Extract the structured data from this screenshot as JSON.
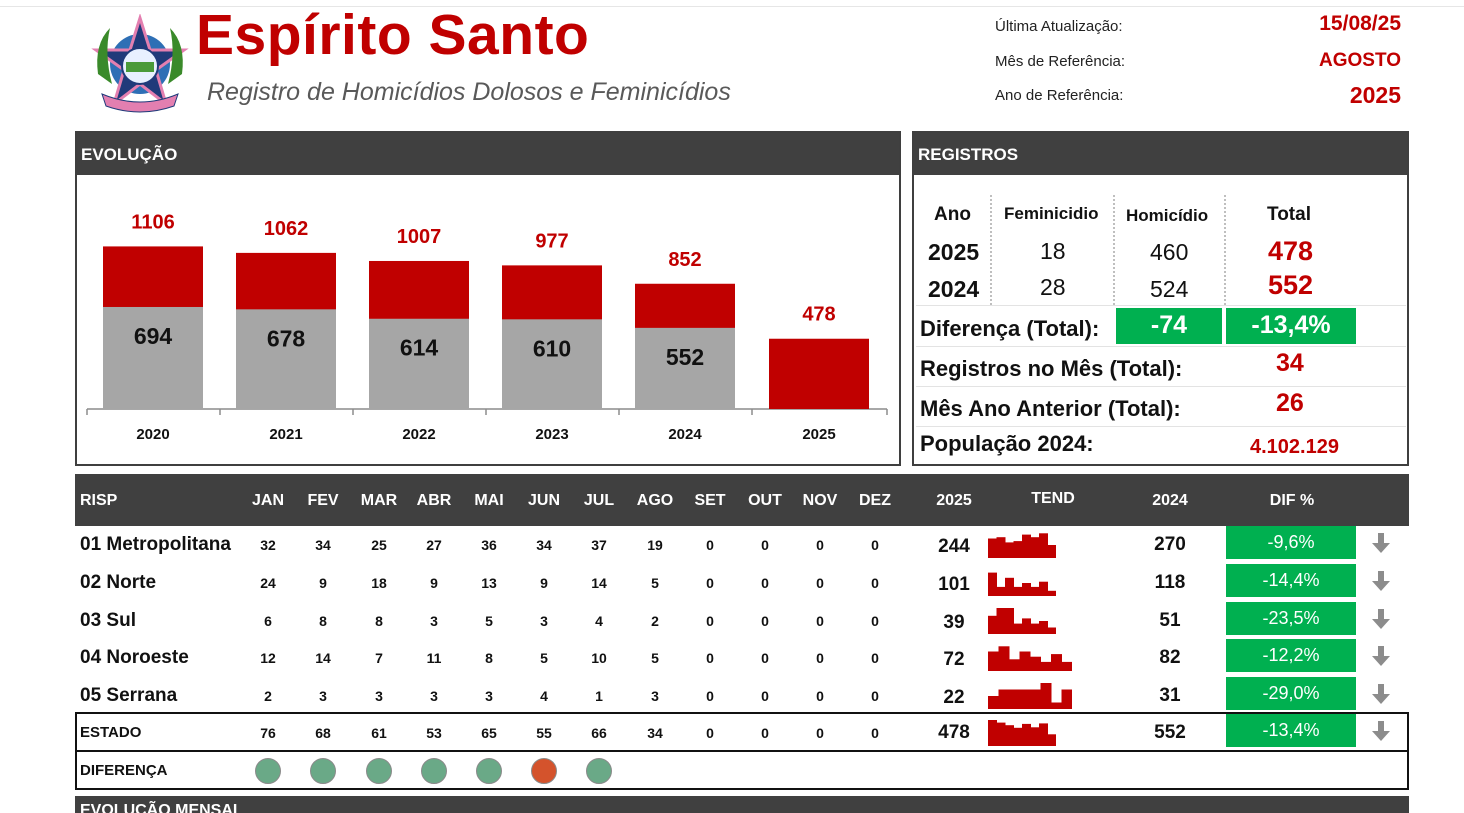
{
  "header": {
    "title": "Espírito Santo",
    "subtitle": "Registro de Homicídios Dolosos e Feminicídios",
    "meta": [
      {
        "label": "Última Atualização:",
        "value": "15/08/25"
      },
      {
        "label": "Mês de Referência:",
        "value": "AGOSTO"
      },
      {
        "label": "Ano de Referência:",
        "value": "2025"
      }
    ]
  },
  "colors": {
    "accent_red": "#c00000",
    "gray_bar": "#a6a6a6",
    "green": "#00b050",
    "header_dark": "#404040",
    "dot_green": "#6aa987",
    "dot_red": "#d4532c"
  },
  "evolucao": {
    "title": "EVOLUÇÃO",
    "chart_data": {
      "type": "bar",
      "categories": [
        "2020",
        "2021",
        "2022",
        "2023",
        "2024",
        "2025"
      ],
      "series": [
        {
          "values": [
            694,
            678,
            614,
            610,
            552,
            null
          ]
        },
        {
          "values": [
            1106,
            1062,
            1007,
            977,
            852,
            478
          ]
        }
      ],
      "total_labels": [
        "1106",
        "1062",
        "1007",
        "977",
        "852",
        "478"
      ],
      "base_labels": [
        "694",
        "678",
        "614",
        "610",
        "552",
        ""
      ]
    }
  },
  "registros": {
    "title": "REGISTROS",
    "headers": {
      "ano": "Ano",
      "fem": "Feminicidio",
      "hom": "Homicídio",
      "total": "Total"
    },
    "rows": [
      {
        "ano": "2025",
        "fem": "18",
        "hom": "460",
        "total": "478"
      },
      {
        "ano": "2024",
        "fem": "28",
        "hom": "524",
        "total": "552"
      }
    ],
    "diferenca_label": "Diferença (Total):",
    "diferenca_abs": "-74",
    "diferenca_pct": "-13,4%",
    "mes_label": "Registros no Mês (Total):",
    "mes_value": "34",
    "mes_ant_label": "Mês Ano Anterior (Total):",
    "mes_ant_value": "26",
    "pop_label": "População 2024:",
    "pop_value": "4.102.129"
  },
  "table": {
    "headers": {
      "risp": "RISP",
      "months": [
        "JAN",
        "FEV",
        "MAR",
        "ABR",
        "MAI",
        "JUN",
        "JUL",
        "AGO",
        "SET",
        "OUT",
        "NOV",
        "DEZ"
      ],
      "y2025": "2025",
      "tend": "TEND",
      "y2024": "2024",
      "dif": "DIF %"
    },
    "rows": [
      {
        "name": "01 Metropolitana",
        "months": [
          "32",
          "34",
          "25",
          "27",
          "36",
          "34",
          "37",
          "19",
          "0",
          "0",
          "0",
          "0"
        ],
        "y2025": "244",
        "y2024": "270",
        "dif": "-9,6%"
      },
      {
        "name": "02 Norte",
        "months": [
          "24",
          "9",
          "18",
          "9",
          "13",
          "9",
          "14",
          "5",
          "0",
          "0",
          "0",
          "0"
        ],
        "y2025": "101",
        "y2024": "118",
        "dif": "-14,4%"
      },
      {
        "name": "03 Sul",
        "months": [
          "6",
          "8",
          "8",
          "3",
          "5",
          "3",
          "4",
          "2",
          "0",
          "0",
          "0",
          "0"
        ],
        "y2025": "39",
        "y2024": "51",
        "dif": "-23,5%"
      },
      {
        "name": "04 Noroeste",
        "months": [
          "12",
          "14",
          "7",
          "11",
          "8",
          "5",
          "10",
          "5",
          "0",
          "0",
          "0",
          "0"
        ],
        "y2025": "72",
        "y2024": "82",
        "dif": "-12,2%"
      },
      {
        "name": "05 Serrana",
        "months": [
          "2",
          "3",
          "3",
          "3",
          "3",
          "4",
          "1",
          "3",
          "0",
          "0",
          "0",
          "0"
        ],
        "y2025": "22",
        "y2024": "31",
        "dif": "-29,0%"
      }
    ],
    "estado": {
      "name": "ESTADO",
      "months": [
        "76",
        "68",
        "61",
        "53",
        "65",
        "55",
        "66",
        "34",
        "0",
        "0",
        "0",
        "0"
      ],
      "y2025": "478",
      "y2024": "552",
      "dif": "-13,4%"
    },
    "diferenca_label": "DIFERENÇA",
    "diferenca_dots": [
      "green",
      "green",
      "green",
      "green",
      "green",
      "red",
      "green"
    ]
  },
  "footer": {
    "next_section": "EVOLUÇÃO MENSAL"
  }
}
